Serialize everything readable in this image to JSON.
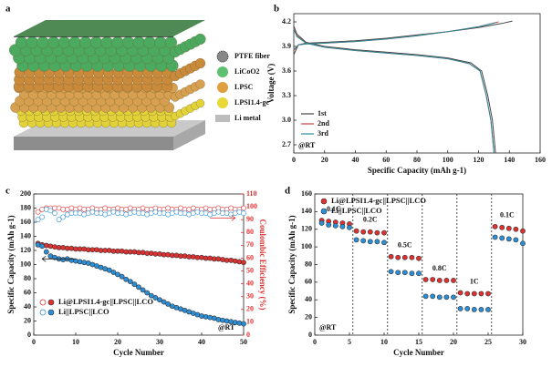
{
  "illustration": {
    "label": "a",
    "legend": [
      "PTFE fiber",
      "LiCoO2",
      "LPSC",
      "LPSI1.4-gc",
      "Li metal"
    ]
  },
  "chart_data": [
    {
      "type": "line",
      "label": "b",
      "xlabel": "Specific Capacity (mAh g-1)",
      "ylabel": "Voltage (V)",
      "annotation": "@RT",
      "xlim": [
        0,
        160
      ],
      "xticks": [
        0,
        20,
        40,
        60,
        80,
        100,
        120,
        140,
        160
      ],
      "ylim": [
        2.6,
        4.3
      ],
      "yticks": [
        2.7,
        {
          "value": 3,
          "label": "3.0"
        },
        3.3,
        3.6,
        3.9,
        4.2
      ],
      "legend": "lower left",
      "series": [
        {
          "name": "1st",
          "color": "#444444",
          "x": [
            0,
            3,
            8,
            20,
            40,
            60,
            80,
            100,
            120,
            135,
            142,
            null,
            0,
            2,
            8,
            20,
            40,
            60,
            80,
            100,
            115,
            122,
            126,
            129,
            131
          ],
          "values": [
            3.8,
            3.92,
            3.94,
            3.95,
            3.97,
            4.0,
            4.04,
            4.08,
            4.13,
            4.18,
            4.21,
            null,
            4.15,
            4.05,
            3.95,
            3.9,
            3.86,
            3.83,
            3.8,
            3.76,
            3.7,
            3.6,
            3.3,
            3.0,
            2.6
          ]
        },
        {
          "name": "2nd",
          "color": "#d04040",
          "x": [
            0,
            3,
            8,
            20,
            40,
            60,
            80,
            100,
            120,
            133,
            null,
            0,
            2,
            8,
            20,
            40,
            60,
            80,
            100,
            114,
            121,
            125,
            128,
            130
          ],
          "values": [
            3.85,
            3.92,
            3.93,
            3.94,
            3.96,
            3.99,
            4.03,
            4.08,
            4.14,
            4.2,
            null,
            4.12,
            4.03,
            3.94,
            3.89,
            3.85,
            3.82,
            3.79,
            3.75,
            3.69,
            3.6,
            3.3,
            3.0,
            2.6
          ]
        },
        {
          "name": "3rd",
          "color": "#2a8a9a",
          "x": [
            0,
            3,
            8,
            20,
            40,
            60,
            80,
            100,
            120,
            131,
            null,
            0,
            2,
            8,
            20,
            40,
            60,
            80,
            100,
            114,
            121,
            125,
            128,
            130
          ],
          "values": [
            3.86,
            3.92,
            3.93,
            3.94,
            3.96,
            3.99,
            4.03,
            4.08,
            4.14,
            4.19,
            null,
            4.11,
            4.02,
            3.94,
            3.89,
            3.85,
            3.82,
            3.79,
            3.75,
            3.69,
            3.6,
            3.3,
            3.0,
            2.6
          ]
        }
      ]
    },
    {
      "type": "scatter",
      "label": "c",
      "xlabel": "Cycle Number",
      "ylabel": "Specific Capacity (mAh g-1)",
      "y2label": "Coulombic Efficiency (%)",
      "annotation": "@RT",
      "xlim": [
        0,
        50
      ],
      "xticks": [
        0,
        10,
        20,
        30,
        40,
        50
      ],
      "ylim": [
        0,
        200
      ],
      "yticks": [
        0,
        20,
        40,
        60,
        80,
        100,
        120,
        140,
        160,
        180,
        200
      ],
      "y2lim": [
        0,
        110
      ],
      "y2ticks": [
        0,
        10,
        20,
        30,
        40,
        50,
        60,
        70,
        80,
        90,
        100,
        110
      ],
      "y2color": "#e03030",
      "legend": "lower left",
      "x": [
        1,
        2,
        3,
        4,
        5,
        6,
        7,
        8,
        9,
        10,
        11,
        12,
        13,
        14,
        15,
        16,
        17,
        18,
        19,
        20,
        21,
        22,
        23,
        24,
        25,
        26,
        27,
        28,
        29,
        30,
        31,
        32,
        33,
        34,
        35,
        36,
        37,
        38,
        39,
        40,
        41,
        42,
        43,
        44,
        45,
        46,
        47,
        48,
        49,
        50
      ],
      "series": [
        {
          "name": "Li@LPSI1.4-gc||LPSC||LCO",
          "color": "#e03030",
          "marker": "filled",
          "values": [
            130,
            128,
            127,
            126,
            125,
            124,
            124,
            123,
            123,
            122,
            122,
            122,
            121,
            121,
            121,
            120,
            120,
            120,
            119,
            119,
            119,
            118,
            118,
            118,
            117,
            117,
            116,
            116,
            115,
            115,
            114,
            114,
            113,
            113,
            112,
            112,
            111,
            111,
            110,
            110,
            109,
            109,
            108,
            108,
            107,
            106,
            106,
            105,
            104,
            103
          ]
        },
        {
          "name": "Li||LPSC||LCO",
          "color": "#2a8fd8",
          "marker": "filled",
          "values": [
            128,
            126,
            118,
            112,
            110,
            108,
            107,
            108,
            106,
            105,
            104,
            103,
            102,
            100,
            98,
            96,
            94,
            92,
            89,
            86,
            83,
            79,
            76,
            72,
            68,
            64,
            60,
            56,
            53,
            50,
            47,
            44,
            41,
            39,
            37,
            35,
            33,
            31,
            29,
            27,
            26,
            25,
            24,
            22,
            21,
            20,
            19,
            18,
            17,
            16
          ]
        },
        {
          "color": "#e03030",
          "marker": "hollow",
          "axis": "y2",
          "values": [
            96,
            98,
            99,
            99,
            99,
            99,
            98,
            98,
            99,
            98,
            99,
            98,
            98,
            99,
            98,
            98,
            99,
            98,
            98,
            99,
            98,
            98,
            99,
            98,
            98,
            99,
            98,
            98,
            99,
            98,
            98,
            99,
            98,
            98,
            99,
            98,
            98,
            99,
            98,
            98,
            99,
            98,
            98,
            99,
            98,
            98,
            99,
            98,
            98,
            99
          ]
        },
        {
          "color": "#2a8fd8",
          "marker": "hollow",
          "axis": "y2",
          "values": [
            90,
            92,
            98,
            97,
            95,
            90,
            92,
            94,
            95,
            95,
            95,
            94,
            95,
            96,
            95,
            95,
            94,
            95,
            96,
            95,
            95,
            94,
            95,
            96,
            95,
            95,
            94,
            95,
            96,
            95,
            95,
            94,
            95,
            96,
            95,
            95,
            94,
            95,
            96,
            95,
            95,
            94,
            95,
            96,
            95,
            95,
            94,
            95,
            96,
            95
          ]
        }
      ]
    },
    {
      "type": "scatter",
      "label": "d",
      "xlabel": "Cycle Number",
      "ylabel": "Specific Capacity (mAh g-1)",
      "annotation": "@RT",
      "xlim": [
        0,
        30
      ],
      "xticks": [
        0,
        5,
        10,
        15,
        20,
        25,
        30
      ],
      "ylim": [
        0,
        160
      ],
      "yticks": [
        0,
        20,
        40,
        60,
        80,
        100,
        120,
        140,
        160
      ],
      "legend": "upper left",
      "dividers": [
        5.5,
        10.5,
        15.5,
        20.5,
        25.5
      ],
      "rate_labels": [
        "0.1C",
        "0.2C",
        "0.5C",
        "0.8C",
        "1C",
        "0.1C"
      ],
      "x": [
        1,
        2,
        3,
        4,
        5,
        6,
        7,
        8,
        9,
        10,
        11,
        12,
        13,
        14,
        15,
        16,
        17,
        18,
        19,
        20,
        21,
        22,
        23,
        24,
        25,
        26,
        27,
        28,
        29,
        30
      ],
      "series": [
        {
          "name": "Li@LPSI1.4-gc||LPSC||LCO",
          "color": "#e03030",
          "marker": "filled",
          "values": [
            130,
            129,
            128,
            127,
            126,
            118,
            117,
            117,
            116,
            116,
            89,
            88,
            88,
            88,
            87,
            63,
            63,
            62,
            62,
            62,
            48,
            47,
            47,
            47,
            47,
            123,
            122,
            121,
            120,
            118
          ]
        },
        {
          "name": "Li||LPSC||LCO",
          "color": "#2a8fd8",
          "marker": "filled",
          "values": [
            127,
            125,
            124,
            123,
            122,
            108,
            107,
            106,
            106,
            105,
            72,
            71,
            71,
            70,
            70,
            44,
            44,
            43,
            43,
            43,
            30,
            30,
            29,
            29,
            29,
            111,
            110,
            109,
            108,
            104
          ]
        }
      ]
    }
  ]
}
